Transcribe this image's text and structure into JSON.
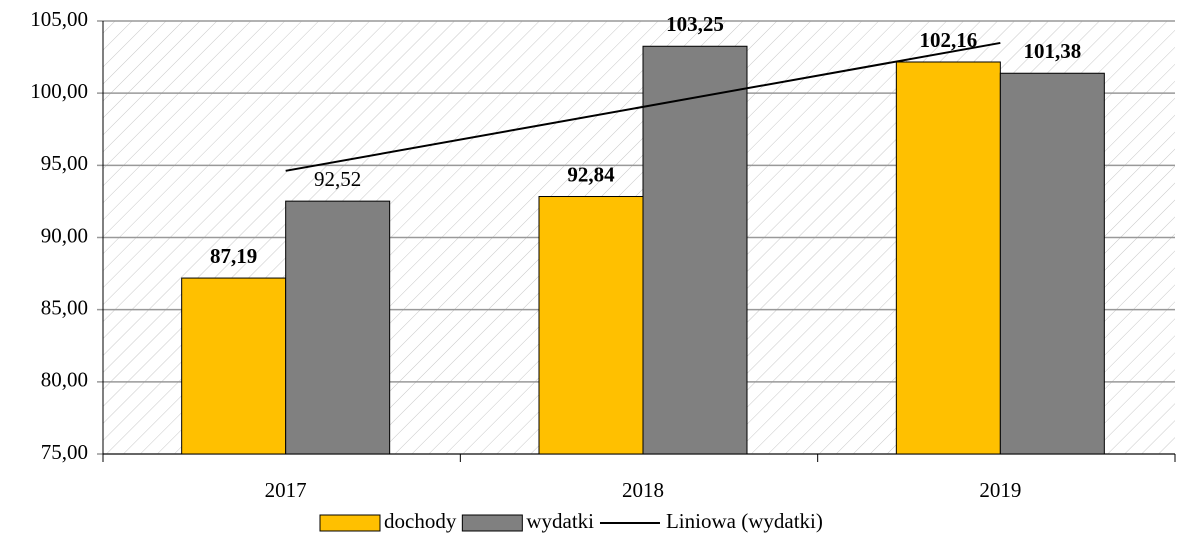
{
  "chart_data": {
    "type": "bar",
    "categories": [
      "2017",
      "2018",
      "2019"
    ],
    "series": [
      {
        "name": "dochody",
        "color": "#ffc000",
        "values": [
          87.19,
          92.84,
          102.16
        ],
        "value_labels": [
          "87,19",
          "92,84",
          "102,16"
        ],
        "label_bold": [
          true,
          true,
          true
        ]
      },
      {
        "name": "wydatki",
        "color": "#808080",
        "values": [
          92.52,
          103.25,
          101.38
        ],
        "value_labels": [
          "92,52",
          "103,25",
          "101,38"
        ],
        "label_bold": [
          false,
          true,
          true
        ]
      }
    ],
    "trendline": {
      "name": "Liniowa (wydatki)",
      "color": "#000000",
      "values": [
        94.62,
        99.05,
        103.48
      ]
    },
    "ylim": [
      75,
      105
    ],
    "yticks": [
      {
        "value": 75,
        "label": "75,00"
      },
      {
        "value": 80,
        "label": "80,00"
      },
      {
        "value": 85,
        "label": "85,00"
      },
      {
        "value": 90,
        "label": "90,00"
      },
      {
        "value": 95,
        "label": "95,00"
      },
      {
        "value": 100,
        "label": "100,00"
      },
      {
        "value": 105,
        "label": "105,00"
      }
    ],
    "grid": true,
    "legend": "bottom"
  }
}
